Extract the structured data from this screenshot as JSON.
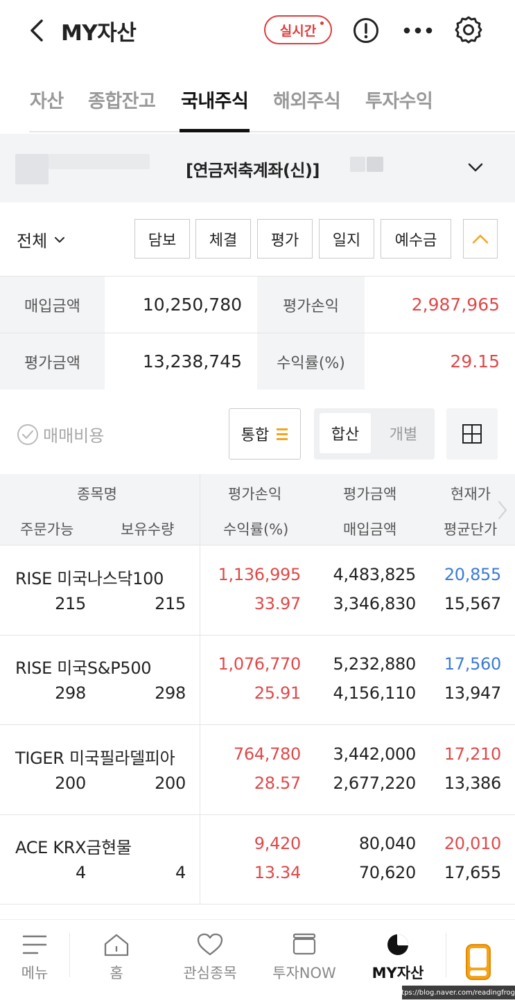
{
  "header": {
    "title": "MY자산",
    "realtime_label": "실시간"
  },
  "tabs": [
    {
      "label": "자산",
      "active": false
    },
    {
      "label": "종합잔고",
      "active": false
    },
    {
      "label": "국내주식",
      "active": true
    },
    {
      "label": "해외주식",
      "active": false
    },
    {
      "label": "투자수익",
      "active": false
    }
  ],
  "account": {
    "name": "[연금저축계좌(신)]"
  },
  "filter": {
    "all_label": "전체",
    "buttons": [
      "담보",
      "체결",
      "평가",
      "일지",
      "예수금"
    ]
  },
  "summary": {
    "purchase_amount_label": "매입금액",
    "purchase_amount": "10,250,780",
    "eval_pl_label": "평가손익",
    "eval_pl": "2,987,965",
    "eval_amount_label": "평가금액",
    "eval_amount": "13,238,745",
    "return_rate_label": "수익률(%)",
    "return_rate": "29.15"
  },
  "options": {
    "fee_label": "매매비용",
    "merge_label": "통합",
    "segment_on": "합산",
    "segment_off": "개별"
  },
  "table_header": {
    "name": "종목명",
    "orderable": "주문가능",
    "holding": "보유수량",
    "eval_pl": "평가손익",
    "return_rate": "수익률(%)",
    "eval_amount": "평가금액",
    "purchase_amount": "매입금액",
    "current_price": "현재가",
    "avg_price": "평균단가"
  },
  "rows": [
    {
      "name": "RISE 미국나스닥100",
      "orderable": "215",
      "holding": "215",
      "eval_pl": "1,136,995",
      "return_rate": "33.97",
      "eval_amount": "4,483,825",
      "purchase_amount": "3,346,830",
      "current_price": "20,855",
      "avg_price": "15,567"
    },
    {
      "name": "RISE 미국S&P500",
      "orderable": "298",
      "holding": "298",
      "eval_pl": "1,076,770",
      "return_rate": "25.91",
      "eval_amount": "5,232,880",
      "purchase_amount": "4,156,110",
      "current_price": "17,560",
      "avg_price": "13,947"
    },
    {
      "name": "TIGER 미국필라델피아",
      "orderable": "200",
      "holding": "200",
      "eval_pl": "764,780",
      "return_rate": "28.57",
      "eval_amount": "3,442,000",
      "purchase_amount": "2,677,220",
      "current_price": "17,210",
      "avg_price": "13,386"
    },
    {
      "name": "ACE KRX금현물",
      "orderable": "4",
      "holding": "4",
      "eval_pl": "9,420",
      "return_rate": "13.34",
      "eval_amount": "80,040",
      "purchase_amount": "70,620",
      "current_price": "20,010",
      "avg_price": "17,655"
    }
  ],
  "bottom_nav": [
    {
      "label": "메뉴",
      "icon": "menu-icon"
    },
    {
      "label": "홈",
      "icon": "home-icon"
    },
    {
      "label": "관심종목",
      "icon": "heart-icon"
    },
    {
      "label": "투자NOW",
      "icon": "tv-icon"
    },
    {
      "label": "MY자산",
      "icon": "pie-chart-icon",
      "active": true
    }
  ],
  "watermark": "https://blog.naver.com/readingfrog_o",
  "colors": {
    "up": "#e04848",
    "down": "#3a7bd5",
    "accent": "#f5a31a"
  }
}
